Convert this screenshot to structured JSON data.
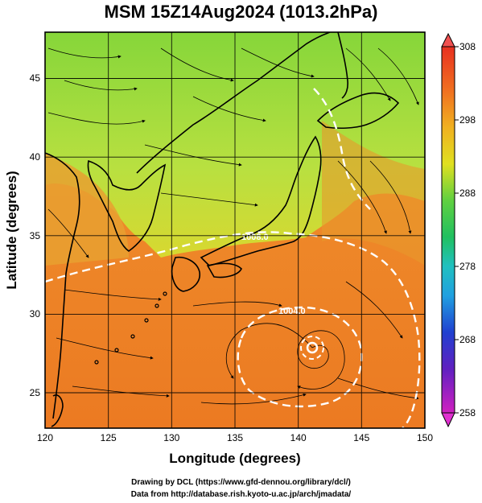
{
  "title": "MSM 15Z14Aug2024 (1013.2hPa)",
  "map": {
    "xlabel": "Longitude (degrees)",
    "ylabel": "Latitude  (degrees)",
    "lon_range": [
      120,
      150
    ],
    "lat_range": [
      22.4,
      47.6
    ],
    "lon_ticks": [
      "120",
      "125",
      "130",
      "135",
      "140",
      "145",
      "150"
    ],
    "lat_ticks": [
      "25",
      "30",
      "35",
      "40",
      "45"
    ],
    "isobars": [
      {
        "label": "1004.0",
        "lon": 141.2,
        "lat": 30.6
      },
      {
        "label": "1008.0",
        "lon": 137.4,
        "lat": 35.8
      }
    ],
    "cyclone_center": {
      "lon": 141.3,
      "lat": 28.2
    }
  },
  "colorbar": {
    "min": 258,
    "max": 308,
    "ticks": [
      "308",
      "298",
      "288",
      "278",
      "268",
      "258"
    ],
    "colors": {
      "top_arrow": "#f05050",
      "bottom_arrow": "#e030d0"
    }
  },
  "footer": {
    "line1": "Drawing by DCL (https://www.gfd-dennou.org/library/dcl/)",
    "line2": "Data from http://database.rish.kyoto-u.ac.jp/arch/jmadata/"
  }
}
